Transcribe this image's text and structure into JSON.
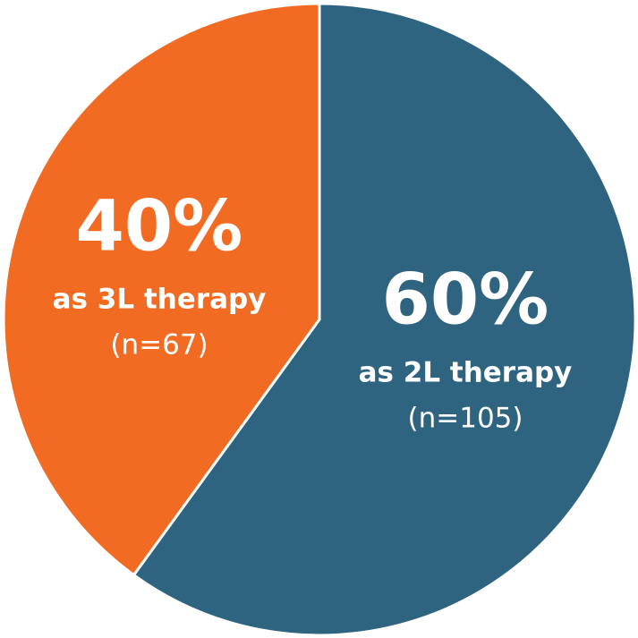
{
  "chart_data": {
    "type": "pie",
    "categories": [
      "as 2L therapy",
      "as 3L therapy"
    ],
    "values": [
      60,
      40
    ],
    "value_labels": [
      "60%",
      "40%"
    ],
    "sample_labels": [
      "(n=105)",
      "(n=67)"
    ],
    "colors": [
      "#2f6480",
      "#f26b22"
    ]
  }
}
